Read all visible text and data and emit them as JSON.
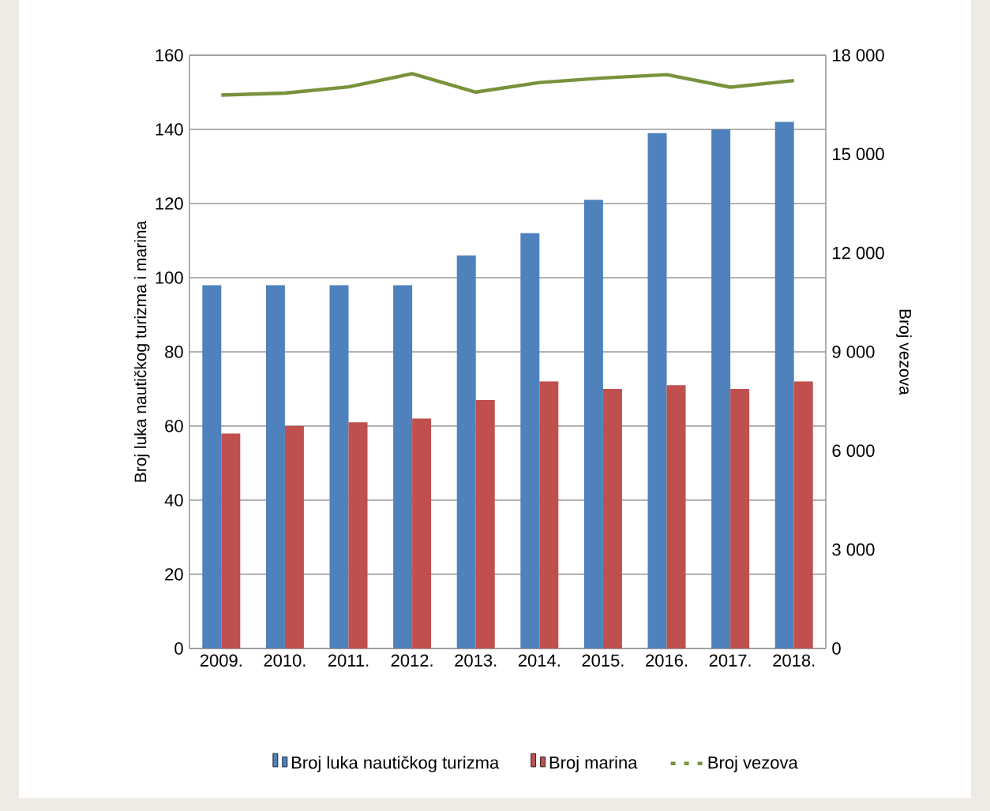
{
  "chart_data": {
    "type": "bar",
    "ylabel": "Broj luka nautičkog turizma i marina",
    "y2label": "Broj vezova",
    "categories": [
      "2009.",
      "2010.",
      "2011.",
      "2012.",
      "2013.",
      "2014.",
      "2015.",
      "2016.",
      "2017.",
      "2018."
    ],
    "series": [
      {
        "name": "Broj luka nautičkog turizma",
        "color": "#4f81bd",
        "values": [
          98,
          98,
          98,
          98,
          106,
          112,
          121,
          139,
          140,
          142
        ]
      },
      {
        "name": "Broj marina",
        "color": "#c0504d",
        "values": [
          58,
          60,
          61,
          62,
          67,
          72,
          70,
          71,
          70,
          72
        ]
      },
      {
        "name": "Broj vezova",
        "type": "line",
        "axis": "y2",
        "color": "#77933c",
        "values": [
          16790,
          16850,
          17040,
          17440,
          16880,
          17170,
          17310,
          17410,
          17030,
          17230
        ]
      }
    ],
    "ylim": [
      0,
      160
    ],
    "yticks": [
      0,
      20,
      40,
      60,
      80,
      100,
      120,
      140,
      160
    ],
    "y2lim": [
      0,
      18000
    ],
    "y2ticks": [
      0,
      {
        "value": 3000,
        "label": "3 000"
      },
      {
        "value": 6000,
        "label": "6 000"
      },
      {
        "value": 9000,
        "label": "9 000"
      },
      {
        "value": 12000,
        "label": "12 000"
      },
      {
        "value": 15000,
        "label": "15 000"
      },
      {
        "value": 18000,
        "label": "18 000"
      }
    ],
    "grid": "y",
    "legend": "bottom"
  }
}
